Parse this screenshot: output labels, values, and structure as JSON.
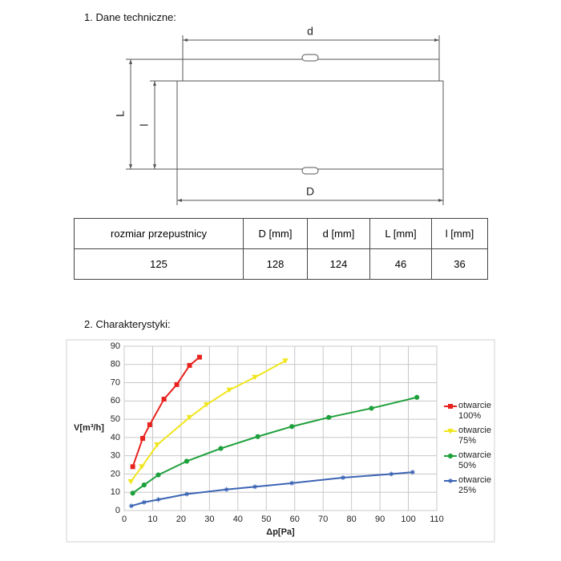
{
  "sections": [
    "1. Dane techniczne:",
    "2. Charakterystyki:"
  ],
  "diagram": {
    "labels": {
      "d": "d",
      "D": "D",
      "L": "L",
      "l": "l"
    }
  },
  "table": {
    "header": [
      "rozmiar przepustnicy",
      "D [mm]",
      "d [mm]",
      "L [mm]",
      "l [mm]"
    ],
    "rows": [
      [
        125,
        128,
        124,
        46,
        36
      ]
    ]
  },
  "chart_data": {
    "type": "line",
    "x_label": "Δp[Pa]",
    "y_label": "V[m³/h]",
    "xlim": [
      0,
      110
    ],
    "xticks": [
      0,
      10,
      20,
      30,
      40,
      50,
      60,
      70,
      80,
      90,
      100,
      110
    ],
    "ylim": [
      0,
      90
    ],
    "yticks": [
      0,
      10,
      20,
      30,
      40,
      50,
      60,
      70,
      80,
      90
    ],
    "grid": true,
    "legend": "right",
    "series": [
      {
        "name": "otwarcie 100%",
        "color": "#e8231e",
        "marker": "square",
        "x": [
          3,
          6.5,
          9,
          14,
          18.5,
          23,
          26.5
        ],
        "values": [
          24,
          39.5,
          47,
          61,
          69,
          79.5,
          84
        ]
      },
      {
        "name": "otwarcie 75%",
        "color": "#f0e61e",
        "marker": "triangle-down",
        "x": [
          2.3,
          6.2,
          11.6,
          23,
          29,
          37,
          46,
          56.7
        ],
        "values": [
          15.8,
          24,
          36,
          51,
          58,
          66,
          73,
          82
        ]
      },
      {
        "name": "otwarcie 50%",
        "color": "#1ea03c",
        "marker": "circle",
        "x": [
          3,
          7,
          12,
          22,
          34,
          47,
          59,
          72,
          87,
          103
        ],
        "values": [
          9.5,
          14,
          19.5,
          27,
          34,
          40.5,
          46,
          51,
          56,
          62
        ]
      },
      {
        "name": "otwarcie 25%",
        "color": "#3c64b4",
        "marker": "star",
        "x": [
          2.5,
          7,
          12,
          22,
          36,
          46,
          59,
          77,
          94,
          101.5
        ],
        "values": [
          2.5,
          4.5,
          6,
          9,
          11.5,
          13,
          15,
          18,
          20,
          21
        ]
      }
    ]
  }
}
